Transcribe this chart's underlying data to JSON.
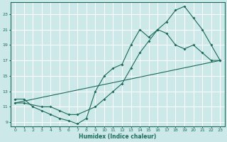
{
  "xlabel": "Humidex (Indice chaleur)",
  "bg_color": "#cce8e8",
  "line_color": "#1a6b5a",
  "grid_color": "#ffffff",
  "xlim": [
    -0.5,
    23.5
  ],
  "ylim": [
    8.5,
    24.5
  ],
  "xticks": [
    0,
    1,
    2,
    3,
    4,
    5,
    6,
    7,
    8,
    9,
    10,
    11,
    12,
    13,
    14,
    15,
    16,
    17,
    18,
    19,
    20,
    21,
    22,
    23
  ],
  "yticks": [
    9,
    11,
    13,
    15,
    17,
    19,
    21,
    23
  ],
  "line1_jagged": {
    "x": [
      0,
      1,
      2,
      3,
      4,
      5,
      6,
      7,
      8,
      9,
      10,
      11,
      12,
      13,
      14,
      15,
      16,
      17,
      18,
      19,
      20,
      21,
      22,
      23
    ],
    "y": [
      12,
      12,
      11,
      10.5,
      10,
      9.5,
      9.2,
      8.8,
      9.5,
      13,
      15,
      16,
      16.5,
      19,
      21,
      20,
      21,
      20.5,
      19,
      18.5,
      19,
      18,
      17,
      17
    ]
  },
  "line2_smooth": {
    "x": [
      0,
      1,
      3,
      4,
      5,
      6,
      7,
      9,
      10,
      11,
      12,
      13,
      14,
      15,
      16,
      17,
      18,
      19,
      20,
      21,
      22,
      23
    ],
    "y": [
      11.5,
      11.5,
      11,
      11,
      10.5,
      10,
      10,
      11,
      12,
      13,
      14,
      16,
      18,
      19.5,
      21,
      22,
      23.5,
      24,
      22.5,
      21,
      19,
      17
    ]
  },
  "line3_diagonal": {
    "x": [
      0,
      23
    ],
    "y": [
      11.5,
      17
    ]
  }
}
